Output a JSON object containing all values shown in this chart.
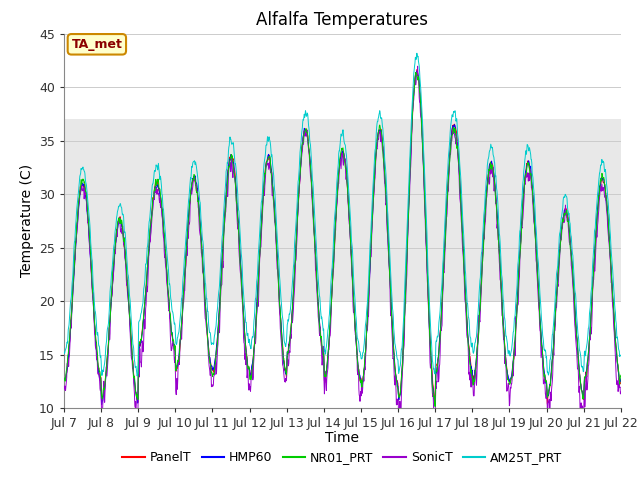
{
  "title": "Alfalfa Temperatures",
  "ylabel": "Temperature (C)",
  "xlabel": "Time",
  "annotation_text": "TA_met",
  "ylim": [
    10,
    45
  ],
  "xlim": [
    7,
    22
  ],
  "shaded_region": [
    20,
    37
  ],
  "colors": {
    "PanelT": "#ff0000",
    "HMP60": "#0000ff",
    "NR01_PRT": "#00cc00",
    "SonicT": "#9900cc",
    "AM25T_PRT": "#00cccc"
  },
  "legend_labels": [
    "PanelT",
    "HMP60",
    "NR01_PRT",
    "SonicT",
    "AM25T_PRT"
  ],
  "background_color": "#ffffff",
  "shaded_color": "#e8e8e8",
  "grid_color": "#cccccc",
  "title_fontsize": 12,
  "axis_fontsize": 9,
  "label_fontsize": 10,
  "legend_fontsize": 9
}
